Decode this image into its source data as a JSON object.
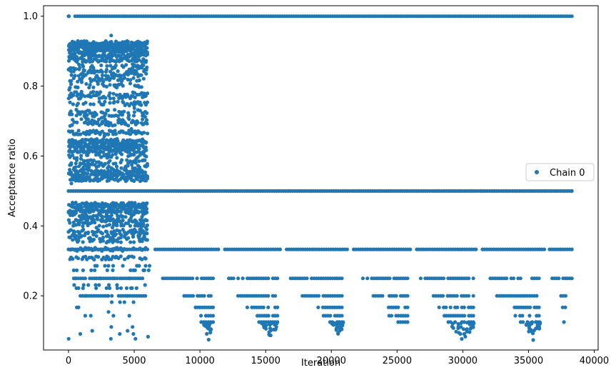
{
  "chart_data": {
    "type": "scatter",
    "xlabel": "Iteration",
    "ylabel": "Acceptance ratio",
    "xlim": [
      -1900,
      40300
    ],
    "ylim": [
      0.045,
      1.03
    ],
    "x_ticks": [
      0,
      5000,
      10000,
      15000,
      20000,
      25000,
      30000,
      35000,
      40000
    ],
    "x_tick_labels": [
      "0",
      "5000",
      "10000",
      "15000",
      "20000",
      "25000",
      "30000",
      "35000",
      "40000"
    ],
    "y_ticks": [
      0.2,
      0.4,
      0.6,
      0.8,
      1.0
    ],
    "y_tick_labels": [
      "0.2",
      "0.4",
      "0.6",
      "0.8",
      "1.0"
    ],
    "grid": false,
    "legend_position": "center-right",
    "series": [
      {
        "name": "Chain 0",
        "color": "#1f77b4",
        "marker": "circle",
        "x_max": 38300,
        "segments": [
          {
            "y": 1.0,
            "x_ranges": [
              [
                0,
                40
              ],
              [
                500,
                4200
              ],
              [
                4300,
                38300
              ]
            ]
          },
          {
            "y": 0.5,
            "x_ranges": [
              [
                0,
                38300
              ]
            ]
          },
          {
            "y": 0.333,
            "x_ranges": [
              [
                0,
                6000
              ],
              [
                6600,
                11400
              ],
              [
                11900,
                16100
              ],
              [
                16600,
                21200
              ],
              [
                21700,
                26000
              ],
              [
                26500,
                31000
              ],
              [
                31500,
                36200
              ],
              [
                36600,
                38300
              ]
            ]
          },
          {
            "y": 0.25,
            "x_ranges": [
              [
                400,
                5800
              ],
              [
                7000,
                11000
              ],
              [
                12200,
                15900
              ],
              [
                16900,
                20800
              ],
              [
                22400,
                25800
              ],
              [
                26800,
                30800
              ],
              [
                32100,
                35800
              ],
              [
                36800,
                38300
              ]
            ]
          },
          {
            "y": 0.2,
            "x_ranges": [
              [
                900,
                5700
              ],
              [
                8800,
                11000
              ],
              [
                12900,
                15900
              ],
              [
                17800,
                20800
              ],
              [
                23200,
                25800
              ],
              [
                27600,
                30800
              ],
              [
                32600,
                35800
              ],
              [
                37300,
                38000
              ]
            ]
          },
          {
            "y": 0.167,
            "x_ranges": [
              [
                9500,
                11000
              ],
              [
                13600,
                15900
              ],
              [
                19000,
                20800
              ],
              [
                24000,
                25800
              ],
              [
                28200,
                30800
              ],
              [
                33600,
                35800
              ],
              [
                37600,
                38000
              ]
            ]
          },
          {
            "y": 0.143,
            "x_ranges": [
              [
                9900,
                11000
              ],
              [
                14200,
                15900
              ],
              [
                19400,
                20800
              ],
              [
                24400,
                25800
              ],
              [
                28600,
                30800
              ],
              [
                34000,
                35800
              ]
            ]
          },
          {
            "y": 0.125,
            "x_ranges": [
              [
                10100,
                11000
              ],
              [
                14500,
                15900
              ],
              [
                19900,
                20800
              ],
              [
                24900,
                25800
              ],
              [
                28900,
                30800
              ],
              [
                34400,
                35800
              ],
              [
                37300,
                37700
              ]
            ]
          }
        ],
        "band_upper": {
          "x_range": [
            0,
            6000
          ],
          "y_range": [
            0.52,
            0.95
          ]
        },
        "band_lower": {
          "x_range": [
            0,
            6000
          ],
          "y_range": [
            0.3,
            0.48
          ]
        },
        "sparse_low": {
          "x_range": [
            0,
            6000
          ],
          "y_range": [
            0.07,
            0.3
          ]
        },
        "curl_tails": [
          {
            "x_range": [
              10300,
              11000
            ],
            "y_range": [
              0.07,
              0.125
            ]
          },
          {
            "x_range": [
              14700,
              15900
            ],
            "y_range": [
              0.08,
              0.125
            ]
          },
          {
            "x_range": [
              20000,
              20900
            ],
            "y_range": [
              0.08,
              0.125
            ]
          },
          {
            "x_range": [
              29000,
              30900
            ],
            "y_range": [
              0.07,
              0.125
            ]
          },
          {
            "x_range": [
              34600,
              35900
            ],
            "y_range": [
              0.07,
              0.125
            ]
          }
        ]
      }
    ]
  }
}
